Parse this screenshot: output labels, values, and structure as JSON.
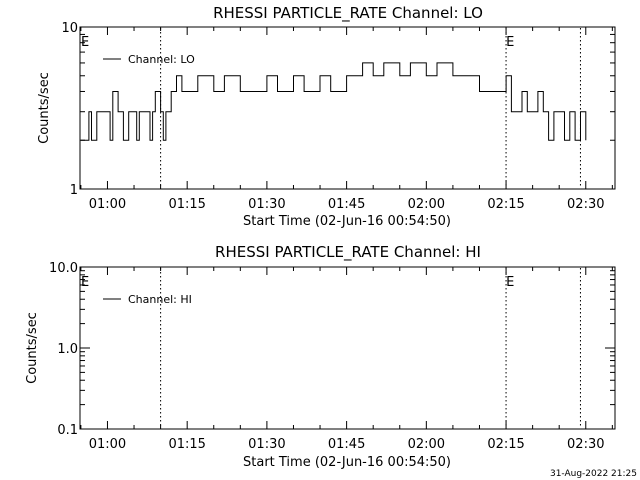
{
  "chart_data": [
    {
      "type": "line",
      "title": "RHESSI PARTICLE_RATE Channel: LO",
      "xlabel": "Start Time (02-Jun-16 00:54:50)",
      "ylabel": "Counts/sec",
      "y_scale": "log",
      "xlim": [
        "00:54:50",
        "02:35:30"
      ],
      "ylim": [
        1,
        10
      ],
      "x_tick_labels": [
        "01:00",
        "01:15",
        "01:30",
        "01:45",
        "02:00",
        "02:15",
        "02:30"
      ],
      "y_tick_labels": [
        "1",
        "10"
      ],
      "legend": {
        "position": "top-left",
        "entries": [
          "Channel: LO"
        ]
      },
      "markers": [
        {
          "label": "E",
          "time": "00:54:50"
        },
        {
          "label": "E",
          "time": "02:14:50"
        }
      ],
      "vertical_lines": [
        "01:10:00",
        "02:15:00",
        "02:29:00"
      ],
      "series": [
        {
          "name": "Channel: LO",
          "x": [
            "00:55:00",
            "00:56:00",
            "00:56:30",
            "00:57:00",
            "00:58:00",
            "01:00:00",
            "01:00:30",
            "01:01:00",
            "01:02:00",
            "01:03:00",
            "01:04:00",
            "01:05:00",
            "01:05:30",
            "01:06:00",
            "01:07:00",
            "01:08:00",
            "01:08:30",
            "01:09:00",
            "01:10:00",
            "01:10:30",
            "01:11:00",
            "01:12:00",
            "01:13:00",
            "01:14:00",
            "01:15:00",
            "01:17:00",
            "01:20:00",
            "01:22:00",
            "01:25:00",
            "01:27:00",
            "01:30:00",
            "01:32:00",
            "01:35:00",
            "01:37:00",
            "01:40:00",
            "01:42:00",
            "01:45:00",
            "01:46:00",
            "01:48:00",
            "01:50:00",
            "01:52:00",
            "01:55:00",
            "01:57:00",
            "02:00:00",
            "02:02:00",
            "02:05:00",
            "02:08:00",
            "02:10:00",
            "02:12:00",
            "02:14:00",
            "02:15:00",
            "02:16:00",
            "02:17:00",
            "02:18:00",
            "02:19:00",
            "02:20:00",
            "02:21:00",
            "02:22:00",
            "02:23:00",
            "02:24:00",
            "02:25:00",
            "02:26:00",
            "02:27:00",
            "02:28:00",
            "02:29:00",
            "02:30:00"
          ],
          "values": [
            2,
            2,
            3,
            2,
            3,
            3,
            2,
            4,
            3,
            2,
            3,
            3,
            2,
            3,
            3,
            2,
            3,
            4,
            3,
            2,
            3,
            4,
            5,
            4,
            4,
            5,
            4,
            5,
            4,
            4,
            5,
            4,
            5,
            4,
            5,
            4,
            5,
            5,
            6,
            5,
            6,
            5,
            6,
            5,
            6,
            5,
            5,
            4,
            4,
            4,
            5,
            3,
            3,
            4,
            3,
            3,
            4,
            3,
            2,
            3,
            3,
            2,
            3,
            2,
            3,
            2
          ]
        }
      ]
    },
    {
      "type": "line",
      "title": "RHESSI PARTICLE_RATE Channel: HI",
      "xlabel": "Start Time (02-Jun-16 00:54:50)",
      "ylabel": "Counts/sec",
      "y_scale": "log",
      "xlim": [
        "00:54:50",
        "02:35:30"
      ],
      "ylim": [
        0.1,
        10
      ],
      "x_tick_labels": [
        "01:00",
        "01:15",
        "01:30",
        "01:45",
        "02:00",
        "02:15",
        "02:30"
      ],
      "y_tick_labels": [
        "0.1",
        "1.0",
        "10.0"
      ],
      "legend": {
        "position": "top-left",
        "entries": [
          "Channel: HI"
        ]
      },
      "markers": [
        {
          "label": "E",
          "time": "00:54:50"
        },
        {
          "label": "E",
          "time": "02:14:50"
        }
      ],
      "vertical_lines": [
        "01:10:00",
        "02:15:00",
        "02:29:00"
      ],
      "series": [
        {
          "name": "Channel: HI",
          "x": [],
          "values": []
        }
      ]
    }
  ],
  "timestamp": "31-Aug-2022 21:25"
}
